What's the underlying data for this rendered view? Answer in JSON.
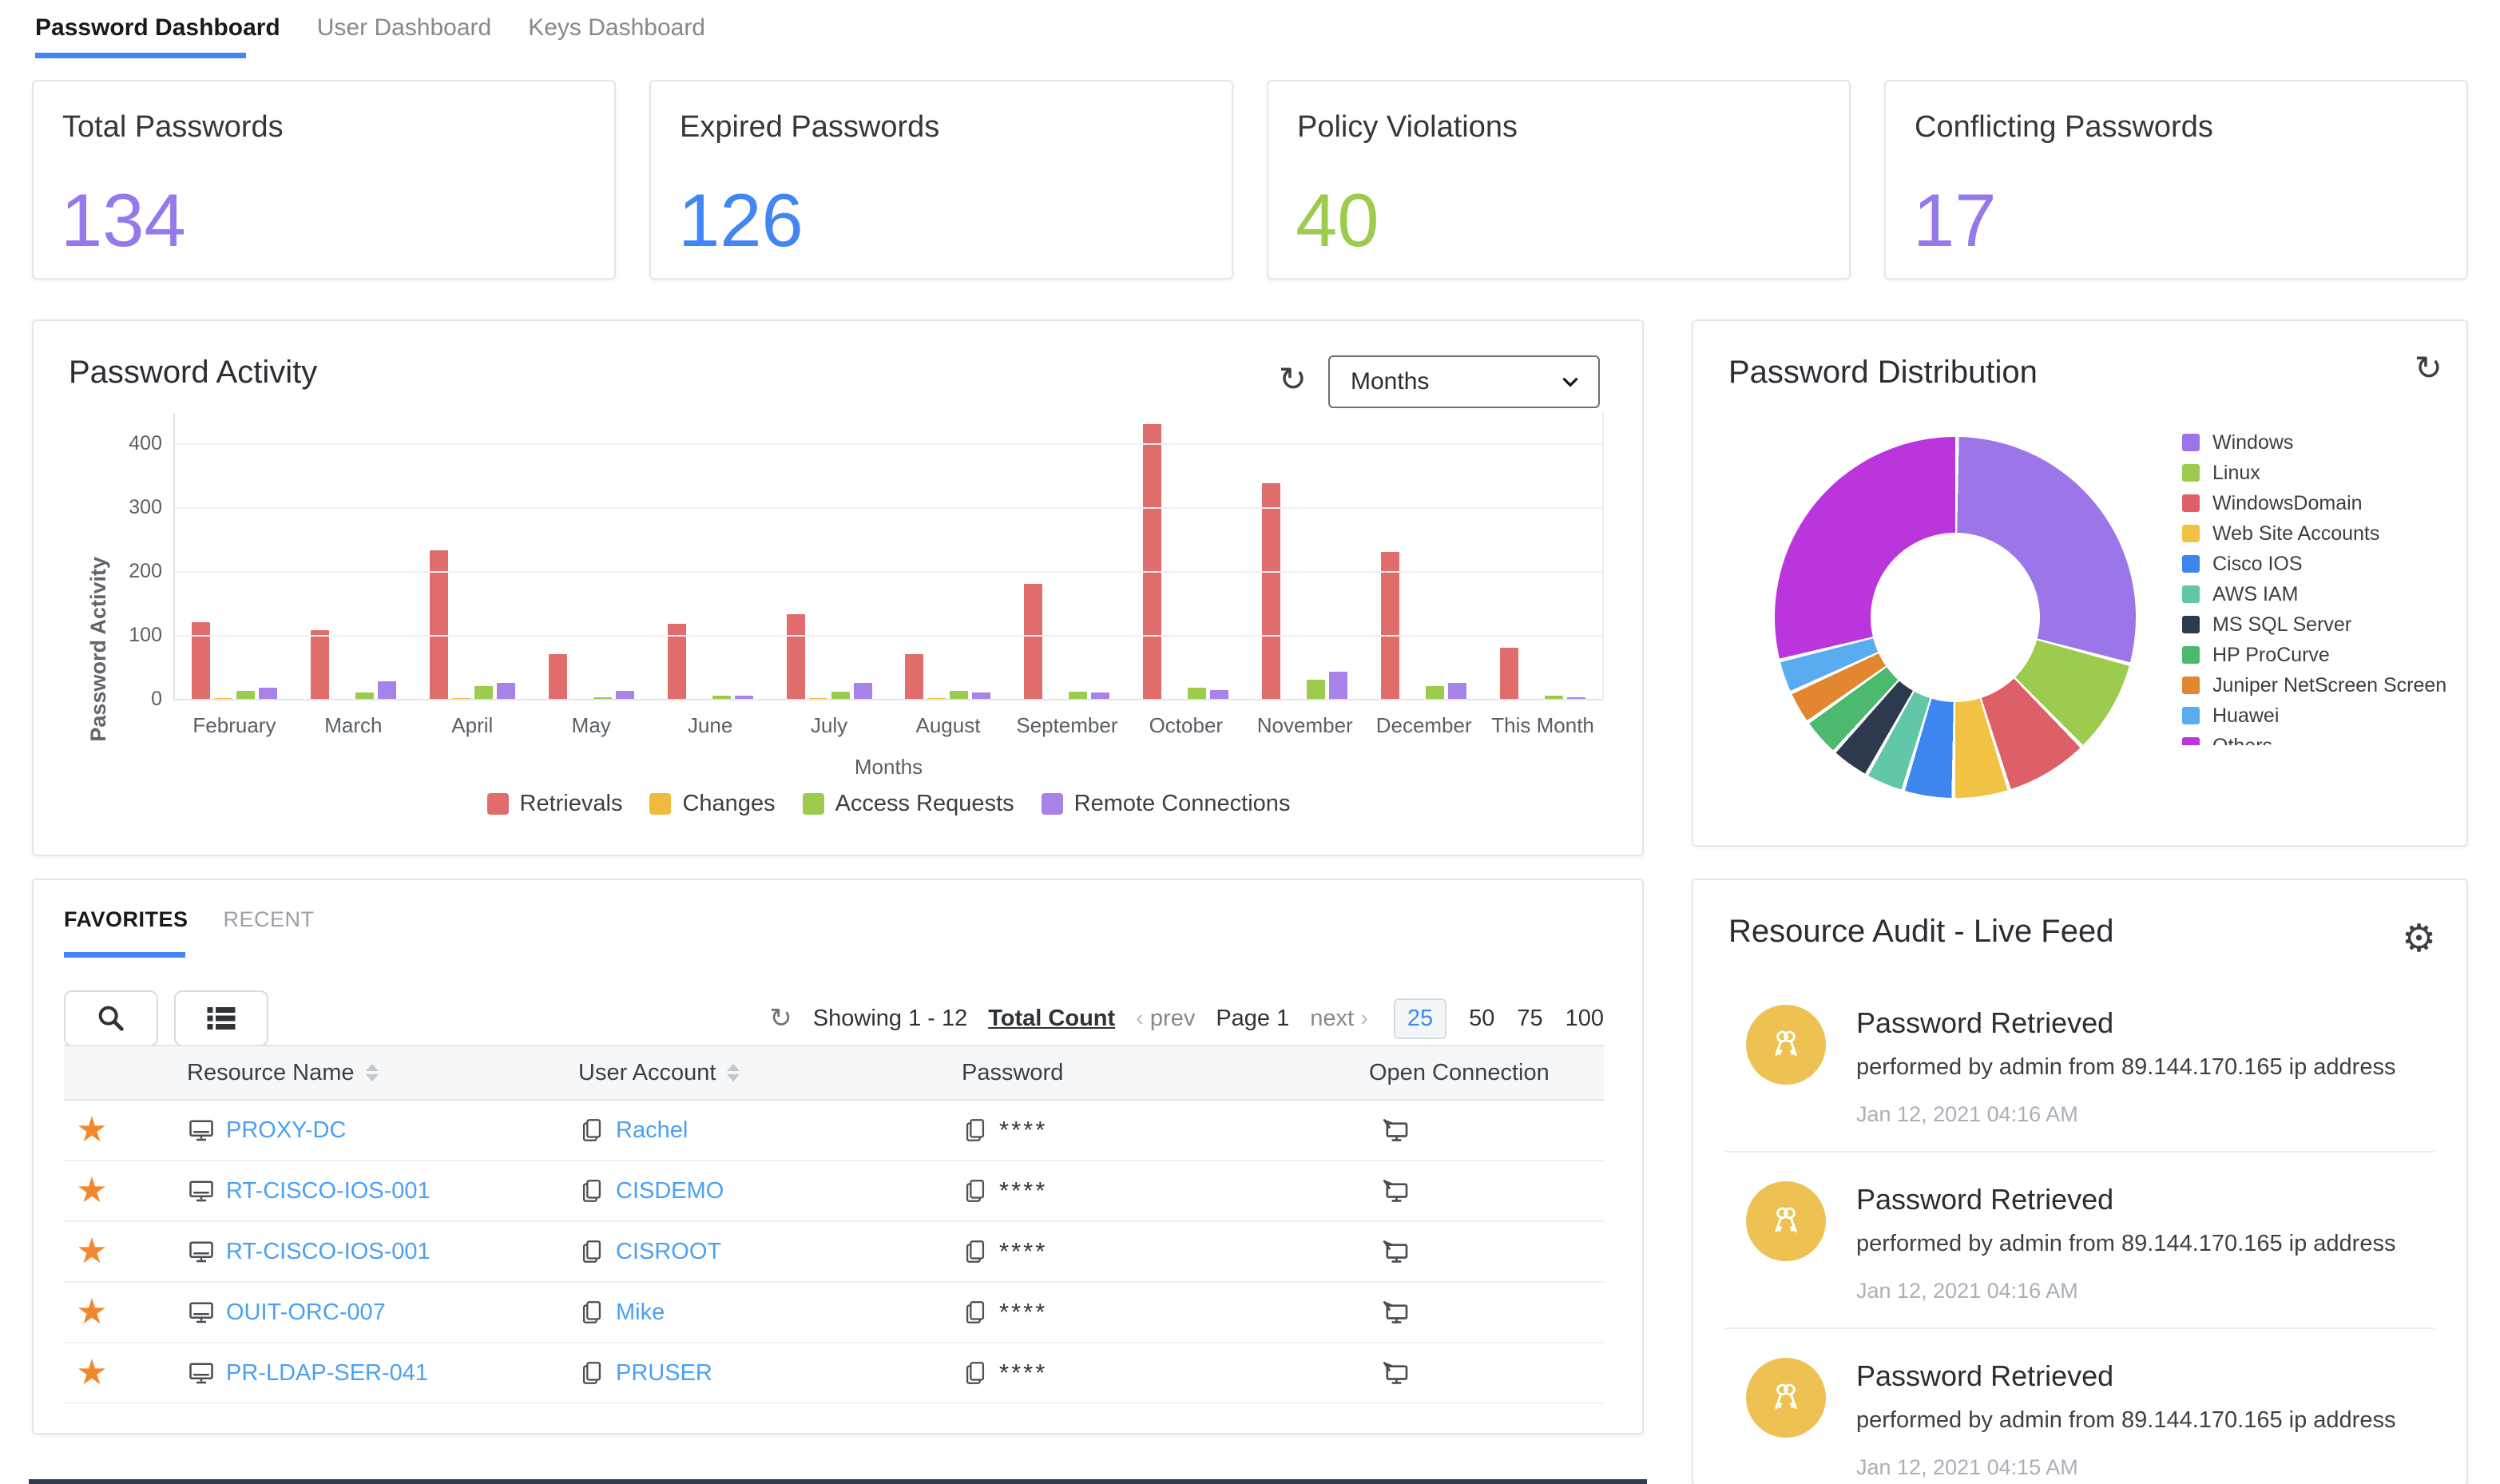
{
  "theme": {
    "accent_blue": "#4285f4",
    "link_blue": "#4aa0f5",
    "star_orange": "#f0882e",
    "avatar_yellow": "#eec252"
  },
  "header_tabs": {
    "items": [
      {
        "label": "Password Dashboard",
        "active": true
      },
      {
        "label": "User Dashboard",
        "active": false
      },
      {
        "label": "Keys Dashboard",
        "active": false
      }
    ]
  },
  "stat_cards": [
    {
      "title": "Total Passwords",
      "value": "134",
      "color": "#9478ec"
    },
    {
      "title": "Expired Passwords",
      "value": "126",
      "color": "#4285f4"
    },
    {
      "title": "Policy Violations",
      "value": "40",
      "color": "#9ccb4e"
    },
    {
      "title": "Conflicting Passwords",
      "value": "17",
      "color": "#9478ec"
    }
  ],
  "activity": {
    "title": "Password Activity",
    "refresh_icon": "refresh-icon",
    "period_select": {
      "value": "Months"
    },
    "chart_data": {
      "type": "bar",
      "title": "Password Activity",
      "xlabel": "Months",
      "ylabel": "Password Activity",
      "ylim": [
        0,
        450
      ],
      "yticks": [
        0,
        100,
        200,
        300,
        400
      ],
      "grid": true,
      "legend_position": "bottom",
      "categories": [
        "February",
        "March",
        "April",
        "May",
        "June",
        "July",
        "August",
        "September",
        "October",
        "November",
        "December",
        "This Month"
      ],
      "series": [
        {
          "name": "Retrievals",
          "color": "#e06c6c",
          "values": [
            122,
            110,
            235,
            72,
            120,
            135,
            73,
            183,
            432,
            340,
            233,
            83
          ]
        },
        {
          "name": "Changes",
          "color": "#efba3f",
          "values": [
            3,
            0,
            3,
            0,
            0,
            3,
            2,
            0,
            0,
            0,
            0,
            0
          ]
        },
        {
          "name": "Access Requests",
          "color": "#9ccb4e",
          "values": [
            15,
            13,
            22,
            5,
            7,
            14,
            15,
            14,
            20,
            33,
            22,
            7
          ]
        },
        {
          "name": "Remote Connections",
          "color": "#a782e8",
          "values": [
            20,
            30,
            27,
            15,
            8,
            28,
            13,
            13,
            16,
            45,
            27,
            5
          ]
        }
      ]
    }
  },
  "distribution": {
    "title": "Password Distribution",
    "refresh_icon": "refresh-icon",
    "chart_data": {
      "type": "pie",
      "title": "Password Distribution",
      "labels": [
        "Windows",
        "Linux",
        "WindowsDomain",
        "Web Site Accounts",
        "Cisco IOS",
        "AWS IAM",
        "MS SQL Server",
        "HP ProCurve",
        "Juniper NetScreen ScreenOS",
        "Huawei",
        "Others"
      ],
      "values": [
        29,
        8.5,
        7.5,
        5,
        4.5,
        3.5,
        3.5,
        3.5,
        3,
        3,
        29
      ],
      "colors": [
        "#9c75e8",
        "#9ccb4e",
        "#dd6069",
        "#f2c245",
        "#3d86f0",
        "#62c6a9",
        "#2d3a4e",
        "#4cba6e",
        "#e2872f",
        "#5aacf0",
        "#bb35dd"
      ],
      "legend_position": "right",
      "donut": true
    }
  },
  "favorites": {
    "tabs": [
      {
        "label": "FAVORITES",
        "active": true
      },
      {
        "label": "RECENT",
        "active": false
      }
    ],
    "pagination": {
      "showing": "Showing 1 - 12",
      "total_count_label": "Total Count",
      "prev_label": "prev",
      "page_label": "Page 1",
      "next_label": "next",
      "prev_chevron": "‹",
      "next_chevron": "›",
      "page_sizes": [
        "25",
        "50",
        "75",
        "100"
      ],
      "active_size": "25"
    },
    "table": {
      "columns": [
        "Resource Name",
        "User Account",
        "Password",
        "Open Connection"
      ],
      "rows": [
        {
          "resource": "PROXY-DC",
          "account": "Rachel",
          "password": "****"
        },
        {
          "resource": "RT-CISCO-IOS-001",
          "account": "CISDEMO",
          "password": "****"
        },
        {
          "resource": "RT-CISCO-IOS-001",
          "account": "CISROOT",
          "password": "****"
        },
        {
          "resource": "OUIT-ORC-007",
          "account": "Mike",
          "password": "****"
        },
        {
          "resource": "PR-LDAP-SER-041",
          "account": "PRUSER",
          "password": "****"
        }
      ]
    }
  },
  "audit": {
    "title": "Resource Audit - Live Feed",
    "settings_icon": "gear-icon",
    "entries": [
      {
        "title": "Password Retrieved",
        "detail": "performed by admin from 89.144.170.165 ip address",
        "time": "Jan 12, 2021 04:16 AM"
      },
      {
        "title": "Password Retrieved",
        "detail": "performed by admin from 89.144.170.165 ip address",
        "time": "Jan 12, 2021 04:16 AM"
      },
      {
        "title": "Password Retrieved",
        "detail": "performed by admin from 89.144.170.165 ip address",
        "time": "Jan 12, 2021 04:15 AM"
      }
    ]
  }
}
